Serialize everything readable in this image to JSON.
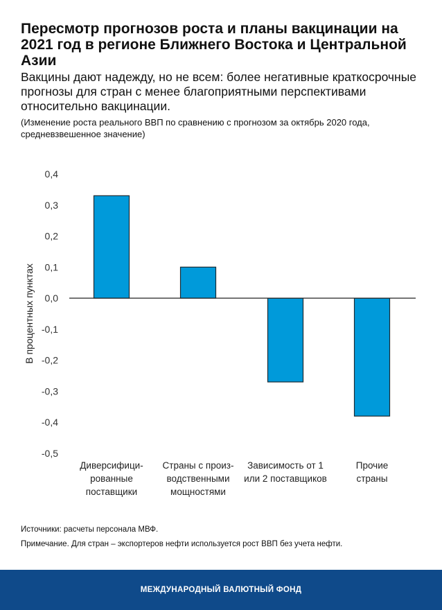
{
  "title": "Пересмотр прогнозов роста и планы вакцинации на 2021 год в регионе Ближнего Востока и Центральной Азии",
  "subtitle": "Вакцины дают надежду, но не всем: более негативные краткосрочные прогнозы для стран с менее благоприятными перспективами относительно вакцинации.",
  "note": "(Изменение роста реального ВВП по сравнению с прогнозом за октябрь 2020 года, средневзвешенное значение)",
  "sources": "Источники: расчеты персонала МВФ.",
  "footnote": "Примечание. Для стран – экспортеров нефти используется рост ВВП без учета нефти.",
  "footer": "МЕЖДУНАРОДНЫЙ ВАЛЮТНЫЙ ФОНД",
  "chart_data": {
    "type": "bar",
    "categories": [
      [
        "Диверсифици-",
        "рованные",
        "поставщики"
      ],
      [
        "Страны с произ-",
        "водственными",
        "мощностями"
      ],
      [
        "Зависимость от 1",
        "или 2 поставщиков"
      ],
      [
        "Прочие",
        "страны"
      ]
    ],
    "values": [
      0.33,
      0.1,
      -0.27,
      -0.38
    ],
    "ylabel": "В процентных пунктах",
    "ylim": [
      -0.5,
      0.4
    ],
    "yticks": [
      "0,4",
      "0,3",
      "0,2",
      "0,1",
      "0,0",
      "-0,1",
      "-0,2",
      "-0,3",
      "-0,4",
      "-0,5"
    ],
    "bar_color": "#009ada",
    "grid": false
  }
}
